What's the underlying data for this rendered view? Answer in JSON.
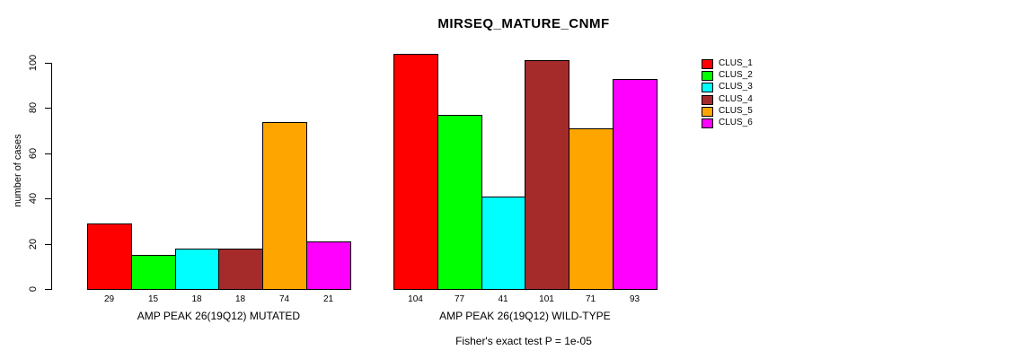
{
  "title": "MIRSEQ_MATURE_CNMF",
  "footer": "Fisher's exact test P = 1e-05",
  "chart_data": {
    "type": "bar",
    "title": "MIRSEQ_MATURE_CNMF",
    "xlabel": "",
    "ylabel": "number of cases",
    "ylim": [
      0,
      100
    ],
    "yticks": [
      "0",
      "20",
      "40",
      "60",
      "80",
      "100"
    ],
    "ytick_values": [
      0,
      20,
      40,
      60,
      80,
      100
    ],
    "grid": false,
    "legend_position": "right",
    "groups": [
      {
        "label": "AMP PEAK 26(19Q12) MUTATED",
        "values": [
          29,
          15,
          18,
          18,
          74,
          21
        ]
      },
      {
        "label": "AMP PEAK 26(19Q12) WILD-TYPE",
        "values": [
          104,
          77,
          41,
          101,
          71,
          93
        ]
      }
    ],
    "series": [
      {
        "name": "CLUS_1",
        "color": "#FF0000",
        "values": [
          29,
          104
        ]
      },
      {
        "name": "CLUS_2",
        "color": "#00FF00",
        "values": [
          15,
          77
        ]
      },
      {
        "name": "CLUS_3",
        "color": "#00FFFF",
        "values": [
          18,
          41
        ]
      },
      {
        "name": "CLUS_4",
        "color": "#A52A2A",
        "values": [
          18,
          101
        ]
      },
      {
        "name": "CLUS_5",
        "color": "#FFA500",
        "values": [
          74,
          71
        ]
      },
      {
        "name": "CLUS_6",
        "color": "#FF00FF",
        "values": [
          21,
          93
        ]
      }
    ],
    "annotation": "Fisher's exact test P = 1e-05"
  }
}
